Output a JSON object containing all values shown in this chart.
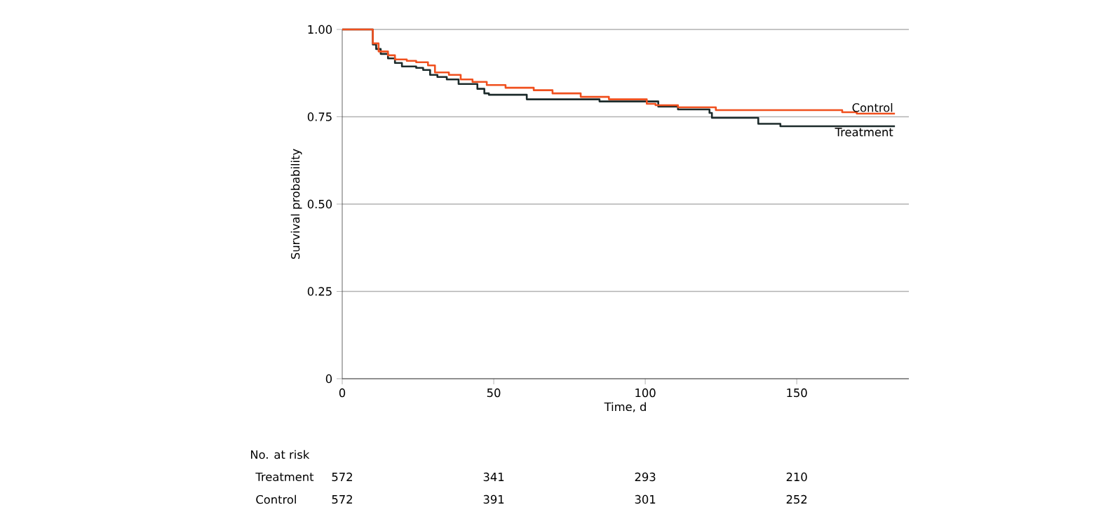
{
  "chart_data": {
    "type": "step",
    "xlabel": "Time, d",
    "ylabel": "Survival probability",
    "xlim": [
      0,
      187
    ],
    "ylim": [
      0,
      1
    ],
    "xticks": [
      0,
      50,
      100,
      150
    ],
    "yticks": [
      0,
      {
        "value": 0.25,
        "label": "0.25"
      },
      {
        "value": 0.5,
        "label": "0.50"
      },
      {
        "value": 0.75,
        "label": "0.75"
      },
      {
        "value": 1,
        "label": "1.00"
      }
    ],
    "grid": "y",
    "legend": false,
    "marker": "none",
    "line_style": "solid",
    "series": [
      {
        "name": "Treatment",
        "color": "#1c2b2b",
        "x": [
          0,
          10.1,
          11.2,
          12.7,
          15.1,
          17.4,
          19.7,
          24.4,
          26.7,
          29.0,
          31.4,
          34.5,
          38.4,
          44.6,
          46.9,
          48.4,
          60.9,
          84.9,
          104.3,
          110.8,
          121.2,
          122,
          137.3,
          144.6,
          182.4
        ],
        "values": [
          1,
          0.957,
          0.944,
          0.93,
          0.917,
          0.904,
          0.894,
          0.89,
          0.884,
          0.87,
          0.864,
          0.857,
          0.844,
          0.83,
          0.817,
          0.813,
          0.8,
          0.794,
          0.779,
          0.771,
          0.761,
          0.747,
          0.73,
          0.723,
          0.723
        ]
      },
      {
        "name": "Control",
        "color": "#f0501e",
        "x": [
          0,
          10.1,
          12,
          15.1,
          17.4,
          21.3,
          24.4,
          28.3,
          30.6,
          35.2,
          39.1,
          43,
          47.7,
          53.9,
          63.2,
          69.4,
          78.7,
          88,
          100.5,
          103.4,
          110.8,
          123.3,
          165,
          169.8,
          182.4
        ],
        "values": [
          1,
          0.96,
          0.937,
          0.926,
          0.914,
          0.91,
          0.906,
          0.897,
          0.877,
          0.87,
          0.857,
          0.85,
          0.841,
          0.833,
          0.826,
          0.817,
          0.807,
          0.8,
          0.787,
          0.783,
          0.777,
          0.769,
          0.763,
          0.759,
          0.759
        ]
      }
    ],
    "annotations": [
      "No. at risk",
      "572",
      "341",
      "293",
      "210",
      "572",
      "391",
      "301",
      "252"
    ]
  }
}
